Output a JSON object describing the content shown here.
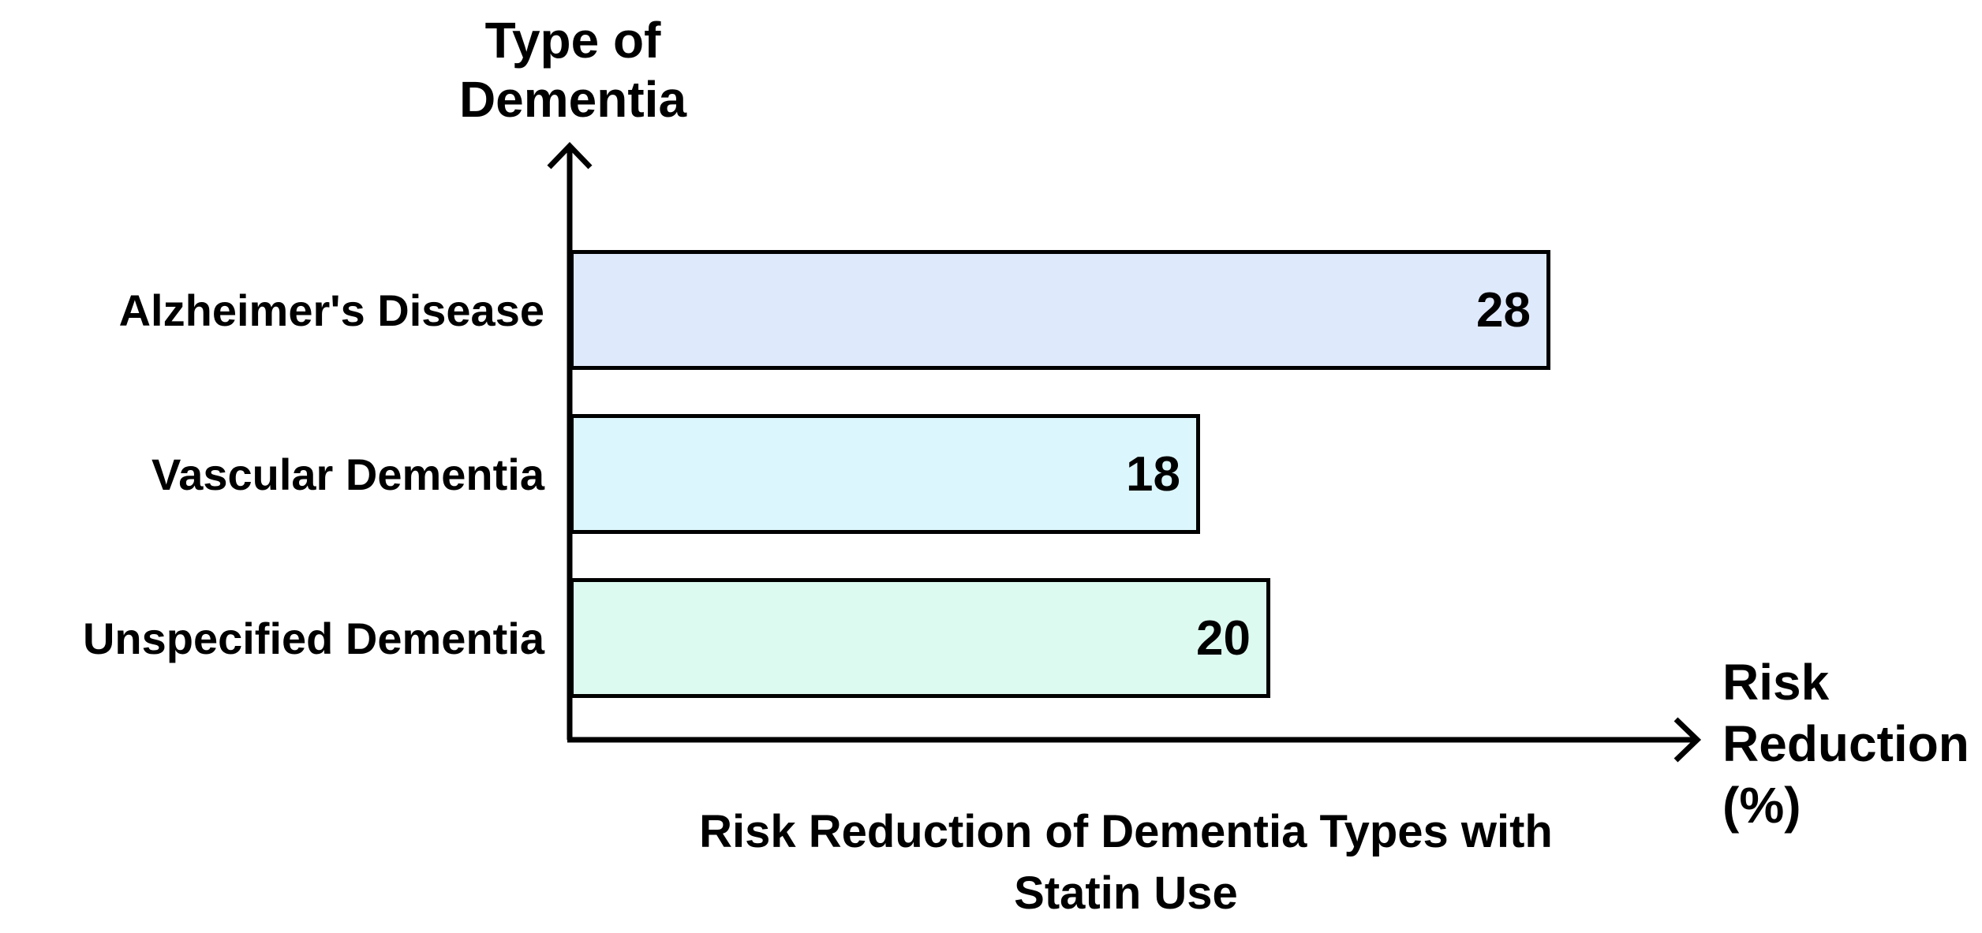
{
  "chart_data": {
    "type": "bar",
    "orientation": "horizontal",
    "title": "Risk Reduction of Dementia Types with Statin Use",
    "title_lines": [
      "Risk Reduction of Dementia Types with",
      "Statin Use"
    ],
    "xlabel": "Risk Reduction (%)",
    "xlabel_lines": [
      "Risk",
      "Reduction",
      "(%)"
    ],
    "ylabel": "Type of Dementia",
    "ylabel_lines": [
      "Type of",
      "Dementia"
    ],
    "categories": [
      "Alzheimer's Disease",
      "Vascular Dementia",
      "Unspecified Dementia"
    ],
    "values": [
      28,
      18,
      20
    ],
    "xlim": [
      0,
      32
    ],
    "grid": false,
    "legend": false,
    "value_labels_shown": true,
    "bar_fill_colors": [
      "#dfe9fc",
      "#dcf6fd",
      "#ddfaf0"
    ],
    "bar_border_color": "#000000",
    "axis_color": "#000000",
    "text_color": "#000000",
    "background_color": "#ffffff"
  }
}
